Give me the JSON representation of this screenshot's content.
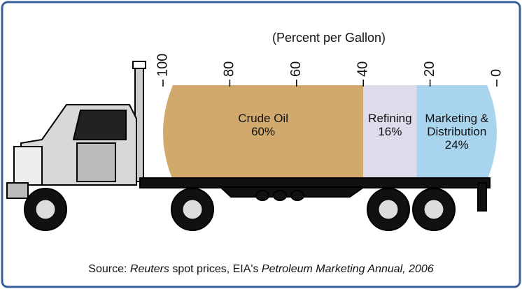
{
  "chart_data": {
    "type": "stacked-bar",
    "title": "(Percent per Gallon)",
    "categories": [
      [
        "Crude Oil"
      ],
      [
        "Refining"
      ],
      [
        "Marketing &",
        "Distribution"
      ]
    ],
    "values": [
      60,
      16,
      24
    ],
    "value_labels": [
      "60%",
      "16%",
      "24%"
    ],
    "colors": [
      "#d2a96c",
      "#dcdcea",
      "#a9d4ee"
    ],
    "xlim": [
      100,
      0
    ],
    "xticks": [
      100,
      80,
      60,
      40,
      20,
      0
    ],
    "source": [
      {
        "text": "Source: ",
        "italic": false
      },
      {
        "text": "Reuters",
        "italic": true
      },
      {
        "text": " spot prices, EIA's ",
        "italic": false
      },
      {
        "text": "Petroleum Marketing Annual, 2006",
        "italic": true
      }
    ]
  }
}
